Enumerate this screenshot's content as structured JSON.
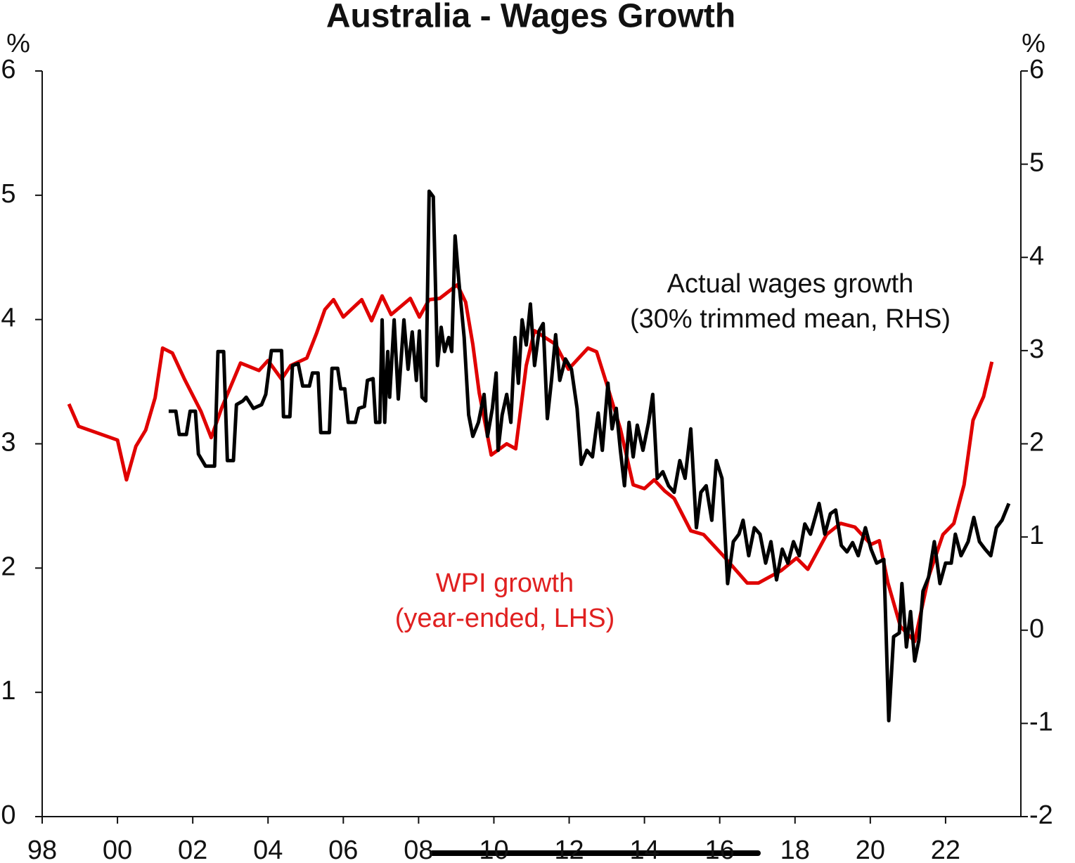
{
  "chart_data": {
    "type": "line",
    "title": "Australia - Wages Growth",
    "ylabel": "%",
    "y2label": "%",
    "xlim": [
      1998,
      2024
    ],
    "xticks": [
      {
        "value": 1998,
        "label": "98"
      },
      {
        "value": 2000,
        "label": "00"
      },
      {
        "value": 2002,
        "label": "02"
      },
      {
        "value": 2004,
        "label": "04"
      },
      {
        "value": 2006,
        "label": "06"
      },
      {
        "value": 2008,
        "label": "08"
      },
      {
        "value": 2010,
        "label": "10"
      },
      {
        "value": 2012,
        "label": "12"
      },
      {
        "value": 2014,
        "label": "14"
      },
      {
        "value": 2016,
        "label": "16"
      },
      {
        "value": 2018,
        "label": "18"
      },
      {
        "value": 2020,
        "label": "20"
      },
      {
        "value": 2022,
        "label": "22"
      }
    ],
    "ylim": [
      0,
      6
    ],
    "yticks": [
      0,
      1,
      2,
      3,
      4,
      5,
      6
    ],
    "y2lim": [
      -2,
      6
    ],
    "y2ticks": [
      -2,
      -1,
      0,
      1,
      2,
      3,
      4,
      5,
      6
    ],
    "grid": false,
    "annotations": [
      {
        "lines": [
          "Actual wages growth",
          "(30% trimmed mean, RHS)"
        ],
        "color": "#111111"
      },
      {
        "lines": [
          "WPI growth",
          "(year-ended, LHS)"
        ],
        "color": "#e02020"
      }
    ],
    "series": [
      {
        "color": "#e00000",
        "axis": "y",
        "x": [
          1998.71,
          1998.97,
          2000.0,
          2000.24,
          2000.49,
          2000.75,
          2001.0,
          2001.2,
          2001.46,
          2001.78,
          2002.22,
          2002.49,
          2002.77,
          2003.27,
          2003.76,
          2004.0,
          2004.36,
          2004.6,
          2005.03,
          2005.29,
          2005.51,
          2005.74,
          2006.0,
          2006.49,
          2006.75,
          2007.03,
          2007.27,
          2007.78,
          2008.02,
          2008.28,
          2008.56,
          2009.03,
          2009.25,
          2009.44,
          2009.61,
          2009.93,
          2010.34,
          2010.58,
          2010.86,
          2011.08,
          2011.64,
          2011.98,
          2012.5,
          2012.73,
          2012.99,
          2013.36,
          2013.7,
          2014.0,
          2014.26,
          2014.54,
          2014.79,
          2015.23,
          2015.57,
          2016.09,
          2016.73,
          2017.03,
          2017.63,
          2018.04,
          2018.34,
          2018.84,
          2019.21,
          2019.59,
          2020.02,
          2020.24,
          2020.47,
          2020.8,
          2021.18,
          2021.55,
          2021.93,
          2022.22,
          2022.49,
          2022.73,
          2023.01,
          2023.23
        ],
        "values": [
          3.32,
          3.14,
          3.03,
          2.71,
          2.98,
          3.11,
          3.37,
          3.77,
          3.73,
          3.52,
          3.26,
          3.05,
          3.29,
          3.65,
          3.59,
          3.67,
          3.52,
          3.63,
          3.69,
          3.89,
          4.08,
          4.16,
          4.02,
          4.16,
          3.99,
          4.19,
          4.04,
          4.17,
          4.02,
          4.16,
          4.17,
          4.28,
          4.14,
          3.8,
          3.41,
          2.91,
          3.0,
          2.96,
          3.63,
          3.91,
          3.8,
          3.6,
          3.77,
          3.74,
          3.49,
          3.12,
          2.67,
          2.64,
          2.71,
          2.62,
          2.56,
          2.3,
          2.27,
          2.1,
          1.88,
          1.88,
          1.98,
          2.08,
          1.99,
          2.27,
          2.36,
          2.33,
          2.19,
          2.22,
          1.88,
          1.53,
          1.41,
          1.93,
          2.27,
          2.36,
          2.67,
          3.19,
          3.38,
          3.66
        ]
      },
      {
        "color": "#000000",
        "axis": "y2",
        "x": [
          2001.36,
          2001.55,
          2001.64,
          2001.83,
          2001.93,
          2002.07,
          2002.15,
          2002.34,
          2002.58,
          2002.67,
          2002.82,
          2002.92,
          2003.08,
          2003.16,
          2003.33,
          2003.42,
          2003.61,
          2003.83,
          2003.94,
          2004.09,
          2004.36,
          2004.41,
          2004.58,
          2004.65,
          2004.8,
          2004.92,
          2005.1,
          2005.18,
          2005.33,
          2005.4,
          2005.63,
          2005.7,
          2005.85,
          2005.93,
          2006.04,
          2006.13,
          2006.32,
          2006.41,
          2006.56,
          2006.64,
          2006.79,
          2006.86,
          2006.97,
          2007.03,
          2007.1,
          2007.18,
          2007.23,
          2007.35,
          2007.46,
          2007.61,
          2007.72,
          2007.83,
          2007.94,
          2008.02,
          2008.09,
          2008.19,
          2008.28,
          2008.39,
          2008.5,
          2008.6,
          2008.69,
          2008.8,
          2008.88,
          2008.97,
          2009.07,
          2009.21,
          2009.33,
          2009.44,
          2009.59,
          2009.74,
          2009.83,
          2009.96,
          2010.06,
          2010.11,
          2010.22,
          2010.34,
          2010.45,
          2010.56,
          2010.65,
          2010.75,
          2010.86,
          2010.97,
          2011.08,
          2011.2,
          2011.31,
          2011.42,
          2011.53,
          2011.64,
          2011.75,
          2011.9,
          2012.06,
          2012.21,
          2012.32,
          2012.47,
          2012.62,
          2012.77,
          2012.88,
          2013.03,
          2013.14,
          2013.25,
          2013.36,
          2013.47,
          2013.59,
          2013.7,
          2013.81,
          2013.96,
          2014.11,
          2014.22,
          2014.34,
          2014.49,
          2014.64,
          2014.79,
          2014.94,
          2015.08,
          2015.23,
          2015.38,
          2015.5,
          2015.64,
          2015.79,
          2015.91,
          2016.06,
          2016.21,
          2016.36,
          2016.51,
          2016.62,
          2016.77,
          2016.92,
          2017.07,
          2017.22,
          2017.36,
          2017.51,
          2017.66,
          2017.81,
          2017.96,
          2018.11,
          2018.26,
          2018.41,
          2018.64,
          2018.79,
          2018.94,
          2019.08,
          2019.23,
          2019.38,
          2019.53,
          2019.68,
          2019.87,
          2020.02,
          2020.17,
          2020.36,
          2020.49,
          2020.62,
          2020.77,
          2020.84,
          2020.96,
          2021.07,
          2021.18,
          2021.29,
          2021.4,
          2021.55,
          2021.7,
          2021.85,
          2022.0,
          2022.15,
          2022.26,
          2022.41,
          2022.6,
          2022.75,
          2022.9,
          2023.05,
          2023.2,
          2023.35,
          2023.5,
          2023.68
        ],
        "values": [
          2.35,
          2.35,
          2.1,
          2.1,
          2.35,
          2.35,
          1.89,
          1.76,
          1.76,
          2.99,
          2.99,
          1.82,
          1.82,
          2.42,
          2.46,
          2.5,
          2.38,
          2.42,
          2.53,
          3.0,
          3.0,
          2.29,
          2.29,
          2.84,
          2.86,
          2.62,
          2.62,
          2.76,
          2.76,
          2.12,
          2.12,
          2.81,
          2.81,
          2.59,
          2.59,
          2.23,
          2.23,
          2.38,
          2.4,
          2.68,
          2.7,
          2.23,
          2.23,
          3.33,
          2.23,
          2.99,
          2.5,
          3.33,
          2.48,
          3.33,
          2.8,
          3.2,
          2.68,
          3.21,
          2.5,
          2.46,
          4.71,
          4.65,
          2.84,
          3.25,
          2.99,
          3.14,
          2.99,
          4.23,
          3.74,
          3.14,
          2.31,
          2.08,
          2.23,
          2.53,
          2.08,
          2.38,
          2.76,
          1.93,
          2.31,
          2.53,
          2.23,
          3.14,
          2.65,
          3.33,
          3.06,
          3.5,
          2.84,
          3.21,
          3.29,
          2.27,
          2.68,
          3.17,
          2.68,
          2.91,
          2.8,
          2.38,
          1.78,
          1.93,
          1.86,
          2.33,
          1.93,
          2.65,
          2.16,
          2.38,
          1.93,
          1.55,
          2.23,
          1.86,
          2.2,
          1.93,
          2.23,
          2.53,
          1.63,
          1.7,
          1.55,
          1.48,
          1.82,
          1.63,
          2.16,
          1.1,
          1.48,
          1.55,
          1.18,
          1.82,
          1.63,
          0.5,
          0.95,
          1.03,
          1.18,
          0.8,
          1.1,
          1.03,
          0.72,
          0.95,
          0.54,
          0.87,
          0.72,
          0.95,
          0.8,
          1.14,
          1.03,
          1.36,
          1.03,
          1.25,
          1.29,
          0.91,
          0.84,
          0.94,
          0.8,
          1.1,
          0.87,
          0.72,
          0.76,
          -0.97,
          -0.07,
          -0.03,
          0.5,
          -0.18,
          0.2,
          -0.33,
          -0.11,
          0.42,
          0.57,
          0.95,
          0.5,
          0.72,
          0.72,
          1.03,
          0.8,
          0.95,
          1.21,
          0.95,
          0.87,
          0.8,
          1.1,
          1.18,
          1.36
        ]
      }
    ]
  }
}
